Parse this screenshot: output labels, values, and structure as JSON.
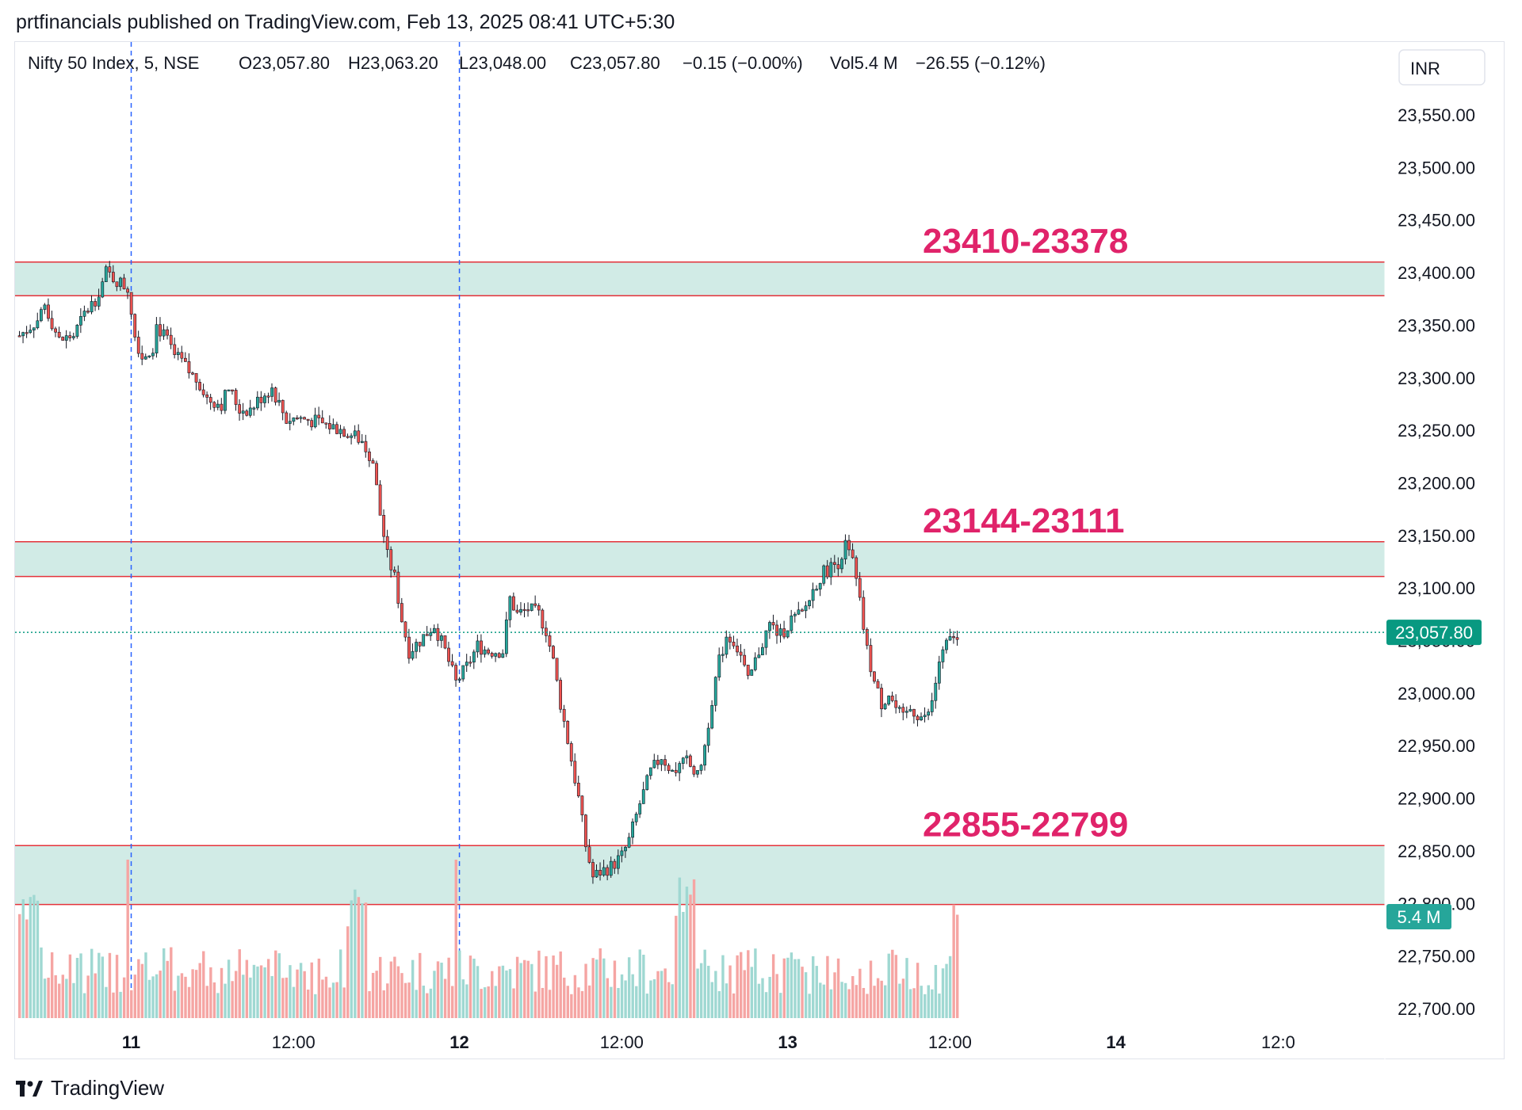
{
  "header": {
    "published_by": "prtfinancials published on TradingView.com, Feb 13, 2025 08:41 UTC+5:30"
  },
  "legend": {
    "symbol": "Nifty 50 Index, 5, NSE",
    "open": "O23,057.80",
    "high": "H23,063.20",
    "low": "L23,048.00",
    "close": "C23,057.80",
    "change": "−0.15 (−0.00%)",
    "volume": "Vol5.4 M",
    "volume_change": "−26.55 (−0.12%)"
  },
  "currency_button": "INR",
  "footer": {
    "brand": "TradingView"
  },
  "colors": {
    "up": "#26a69a",
    "down": "#ef5350",
    "zone_fill": "#d1ebe6",
    "zone_line": "#e4323a",
    "zone_label": "#e0236a",
    "session_line": "#2962ff",
    "last_price_bg": "#089981"
  },
  "chart_data": {
    "type": "candlestick",
    "interval": "5",
    "y_axis": {
      "ylim": [
        22700,
        23580
      ],
      "ticks": [
        "23,550.00",
        "23,500.00",
        "23,450.00",
        "23,400.00",
        "23,350.00",
        "23,300.00",
        "23,250.00",
        "23,200.00",
        "23,150.00",
        "23,100.00",
        "23,050.00",
        "23,000.00",
        "22,950.00",
        "22,900.00",
        "22,850.00",
        "22,800.00",
        "22,750.00",
        "22,700.00"
      ],
      "tick_values": [
        23550,
        23500,
        23450,
        23400,
        23350,
        23300,
        23250,
        23200,
        23150,
        23100,
        23050,
        23000,
        22950,
        22900,
        22850,
        22800,
        22750,
        22700
      ]
    },
    "x_axis": {
      "tick_labels": [
        "11",
        "12:00",
        "12",
        "12:00",
        "13",
        "12:00",
        "14",
        "12:0"
      ],
      "tick_bold": [
        true,
        false,
        true,
        false,
        true,
        false,
        true,
        false
      ],
      "tick_bar_index": [
        30,
        75,
        121,
        166,
        212,
        257,
        303,
        348
      ]
    },
    "session_breaks_bar_index": [
      30,
      121
    ],
    "zones": [
      {
        "label": "23410-23378",
        "high": 23410,
        "low": 23378
      },
      {
        "label": "23144-23111",
        "high": 23144,
        "low": 23111
      },
      {
        "label": "22855-22799",
        "high": 22855,
        "low": 22799
      }
    ],
    "last_price": {
      "value": 23057.8,
      "label": "23,057.80"
    },
    "last_volume": {
      "label": "5.4 M"
    },
    "price_path": [
      [
        0,
        23340
      ],
      [
        5,
        23355
      ],
      [
        7,
        23370
      ],
      [
        11,
        23335
      ],
      [
        15,
        23340
      ],
      [
        18,
        23360
      ],
      [
        21,
        23375
      ],
      [
        23,
        23390
      ],
      [
        24,
        23400
      ],
      [
        26,
        23395
      ],
      [
        30,
        23385
      ],
      [
        31,
        23365
      ],
      [
        32,
        23340
      ],
      [
        34,
        23320
      ],
      [
        37,
        23330
      ],
      [
        38,
        23350
      ],
      [
        41,
        23335
      ],
      [
        43,
        23320
      ],
      [
        45,
        23315
      ],
      [
        47,
        23305
      ],
      [
        50,
        23295
      ],
      [
        52,
        23280
      ],
      [
        56,
        23275
      ],
      [
        58,
        23290
      ],
      [
        61,
        23270
      ],
      [
        64,
        23270
      ],
      [
        68,
        23285
      ],
      [
        70,
        23290
      ],
      [
        72,
        23275
      ],
      [
        74,
        23260
      ],
      [
        77,
        23262
      ],
      [
        80,
        23260
      ],
      [
        85,
        23255
      ],
      [
        90,
        23250
      ],
      [
        95,
        23240
      ],
      [
        98,
        23220
      ],
      [
        100,
        23170
      ],
      [
        102,
        23130
      ],
      [
        104,
        23110
      ],
      [
        106,
        23070
      ],
      [
        108,
        23040
      ],
      [
        111,
        23050
      ],
      [
        115,
        23065
      ],
      [
        118,
        23040
      ],
      [
        121,
        23010
      ],
      [
        124,
        23025
      ],
      [
        127,
        23045
      ],
      [
        130,
        23040
      ],
      [
        134,
        23040
      ],
      [
        136,
        23090
      ],
      [
        138,
        23075
      ],
      [
        141,
        23080
      ],
      [
        144,
        23075
      ],
      [
        146,
        23060
      ],
      [
        148,
        23030
      ],
      [
        150,
        22990
      ],
      [
        152,
        22955
      ],
      [
        155,
        22900
      ],
      [
        157,
        22855
      ],
      [
        159,
        22825
      ],
      [
        161,
        22830
      ],
      [
        164,
        22835
      ],
      [
        167,
        22845
      ],
      [
        169,
        22860
      ],
      [
        172,
        22895
      ],
      [
        175,
        22925
      ],
      [
        178,
        22940
      ],
      [
        181,
        22925
      ],
      [
        185,
        22935
      ],
      [
        188,
        22920
      ],
      [
        190,
        22950
      ],
      [
        192,
        22995
      ],
      [
        194,
        23030
      ],
      [
        196,
        23055
      ],
      [
        198,
        23050
      ],
      [
        200,
        23035
      ],
      [
        202,
        23010
      ],
      [
        205,
        23040
      ],
      [
        208,
        23065
      ],
      [
        211,
        23055
      ],
      [
        214,
        23070
      ],
      [
        217,
        23075
      ],
      [
        219,
        23090
      ],
      [
        221,
        23105
      ],
      [
        223,
        23115
      ],
      [
        225,
        23120
      ],
      [
        227,
        23125
      ],
      [
        229,
        23140
      ],
      [
        231,
        23125
      ],
      [
        233,
        23085
      ],
      [
        235,
        23040
      ],
      [
        237,
        23010
      ],
      [
        239,
        22990
      ],
      [
        241,
        23000
      ],
      [
        243,
        22985
      ],
      [
        245,
        22975
      ],
      [
        247,
        22985
      ],
      [
        249,
        22980
      ],
      [
        251,
        22975
      ],
      [
        253,
        22990
      ],
      [
        255,
        23030
      ],
      [
        257,
        23045
      ],
      [
        259,
        23055
      ],
      [
        260,
        23057.8
      ]
    ],
    "volume_seed": 7
  }
}
